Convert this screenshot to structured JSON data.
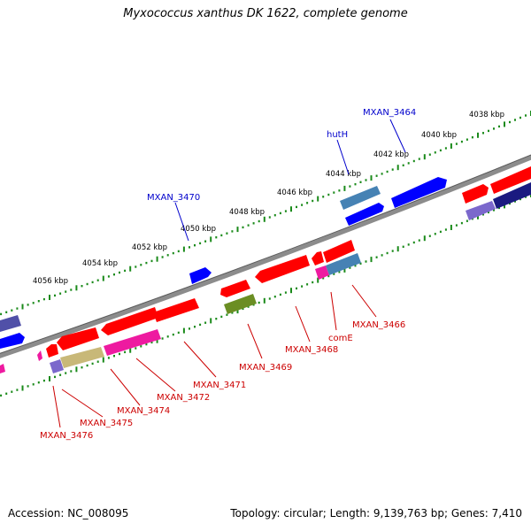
{
  "title": "Myxococcus xanthus DK 1622, complete genome",
  "footer": {
    "accession": "Accession: NC_008095",
    "summary": "Topology: circular; Length: 9,139,763 bp; Genes: 7,410"
  },
  "colors": {
    "backbone": "#808080",
    "scale_ticks": "#1a8a1a",
    "top_label": "#0000cc",
    "bottom_label": "#cc0000",
    "feature_red": "#ff0000",
    "feature_blue": "#0000ff",
    "feature_steelblue": "#4682b4",
    "feature_navy": "#1a1a80",
    "feature_slate": "#5050a8",
    "feature_olive": "#6b8e23",
    "feature_khaki": "#c8b878",
    "feature_magenta": "#ee1aa0",
    "feature_violet": "#7b68cc"
  },
  "scale_labels": [
    "4038 kbp",
    "4040 kbp",
    "4042 kbp",
    "4044 kbp",
    "4046 kbp",
    "4048 kbp",
    "4050 kbp",
    "4052 kbp",
    "4054 kbp",
    "4056 kbp"
  ],
  "top_labels": [
    "MXAN_3464",
    "hutH",
    "MXAN_3470"
  ],
  "bottom_labels": [
    "MXAN_3466",
    "comE",
    "MXAN_3468",
    "MXAN_3469",
    "MXAN_3471",
    "MXAN_3472",
    "MXAN_3474",
    "MXAN_3475",
    "MXAN_3476"
  ]
}
